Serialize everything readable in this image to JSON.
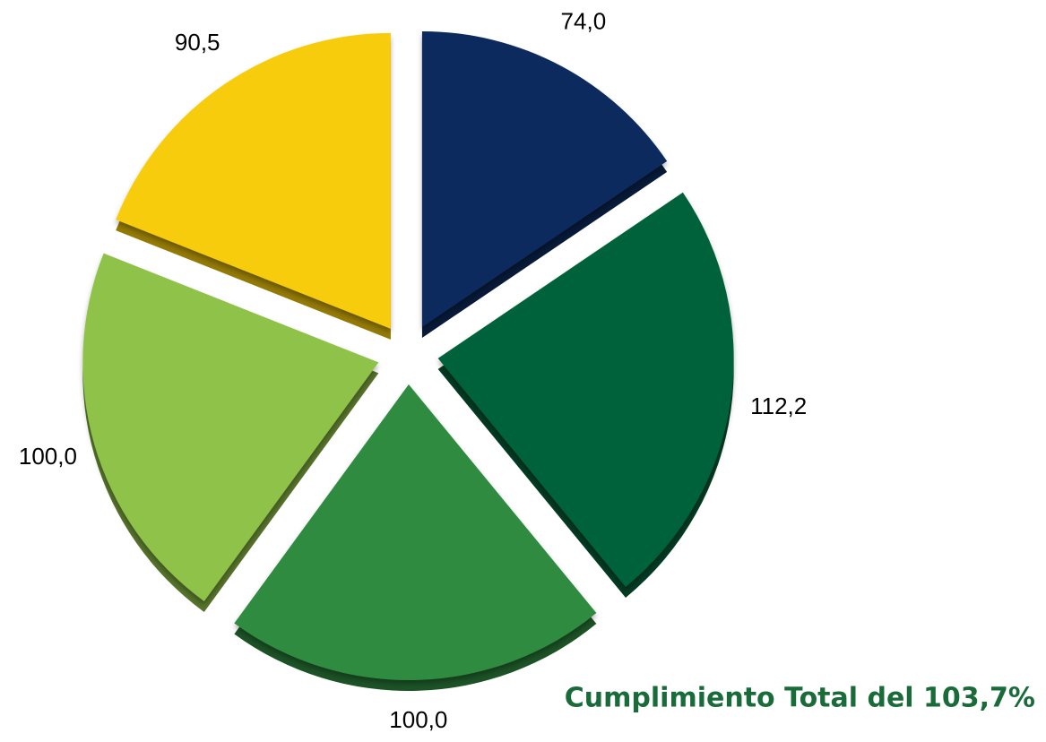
{
  "chart_data": {
    "type": "pie",
    "values": [
      74.0,
      112.2,
      100.0,
      100.0,
      90.5
    ],
    "value_labels": [
      "74,0",
      "112,2",
      "100,0",
      "100,0",
      "90,5"
    ],
    "colors": [
      "#0b2b5f",
      "#06623a",
      "#2e8b3f",
      "#8fc24a",
      "#f6cc0b"
    ],
    "annotation": "Cumplimiento Total del 103,7%"
  }
}
